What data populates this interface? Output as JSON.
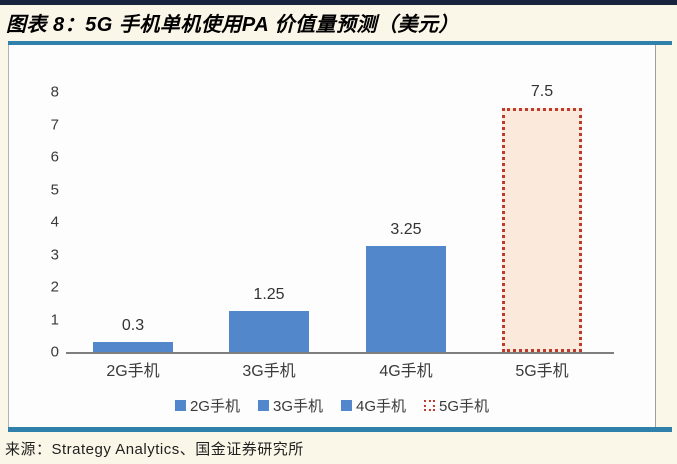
{
  "window": {
    "title": "图表 8：5G 手机单机使用PA 价值量预测（美元）"
  },
  "footer": {
    "source": "来源：Strategy Analytics、国金证券研究所"
  },
  "colors": {
    "page_background": "#FBF7E8",
    "top_rule_navy": "#17233C",
    "frame_rule_blue": "#2F81AC",
    "plot_background": "#FDFDFD",
    "bar_blue": "#5287CB",
    "forecast_fill": "#FBE9DB",
    "forecast_red": "#C03A2B",
    "axis_gray": "#7F7F7F",
    "text_dark": "#3A3A3A"
  },
  "chart_data": {
    "type": "bar",
    "title": "5G 手机单机使用PA 价值量预测（美元）",
    "categories": [
      "2G手机",
      "3G手机",
      "4G手机",
      "5G手机"
    ],
    "values": [
      0.3,
      1.25,
      3.25,
      7.5
    ],
    "value_labels": [
      "0.3",
      "1.25",
      "3.25",
      "7.5"
    ],
    "xlabel": "",
    "ylabel": "",
    "ylim": [
      0,
      8
    ],
    "yticks": [
      0,
      1,
      2,
      3,
      4,
      5,
      6,
      7,
      8
    ],
    "grid": false,
    "legend_position": "bottom",
    "legend": [
      "2G手机",
      "3G手机",
      "4G手机",
      "5G手机"
    ],
    "bar_styles": [
      {
        "fill": "#5287CB",
        "style": "solid"
      },
      {
        "fill": "#5287CB",
        "style": "solid"
      },
      {
        "fill": "#5287CB",
        "style": "solid"
      },
      {
        "fill": "#FBE9DB",
        "style": "dotted-outline",
        "border_color": "#C03A2B"
      }
    ]
  }
}
